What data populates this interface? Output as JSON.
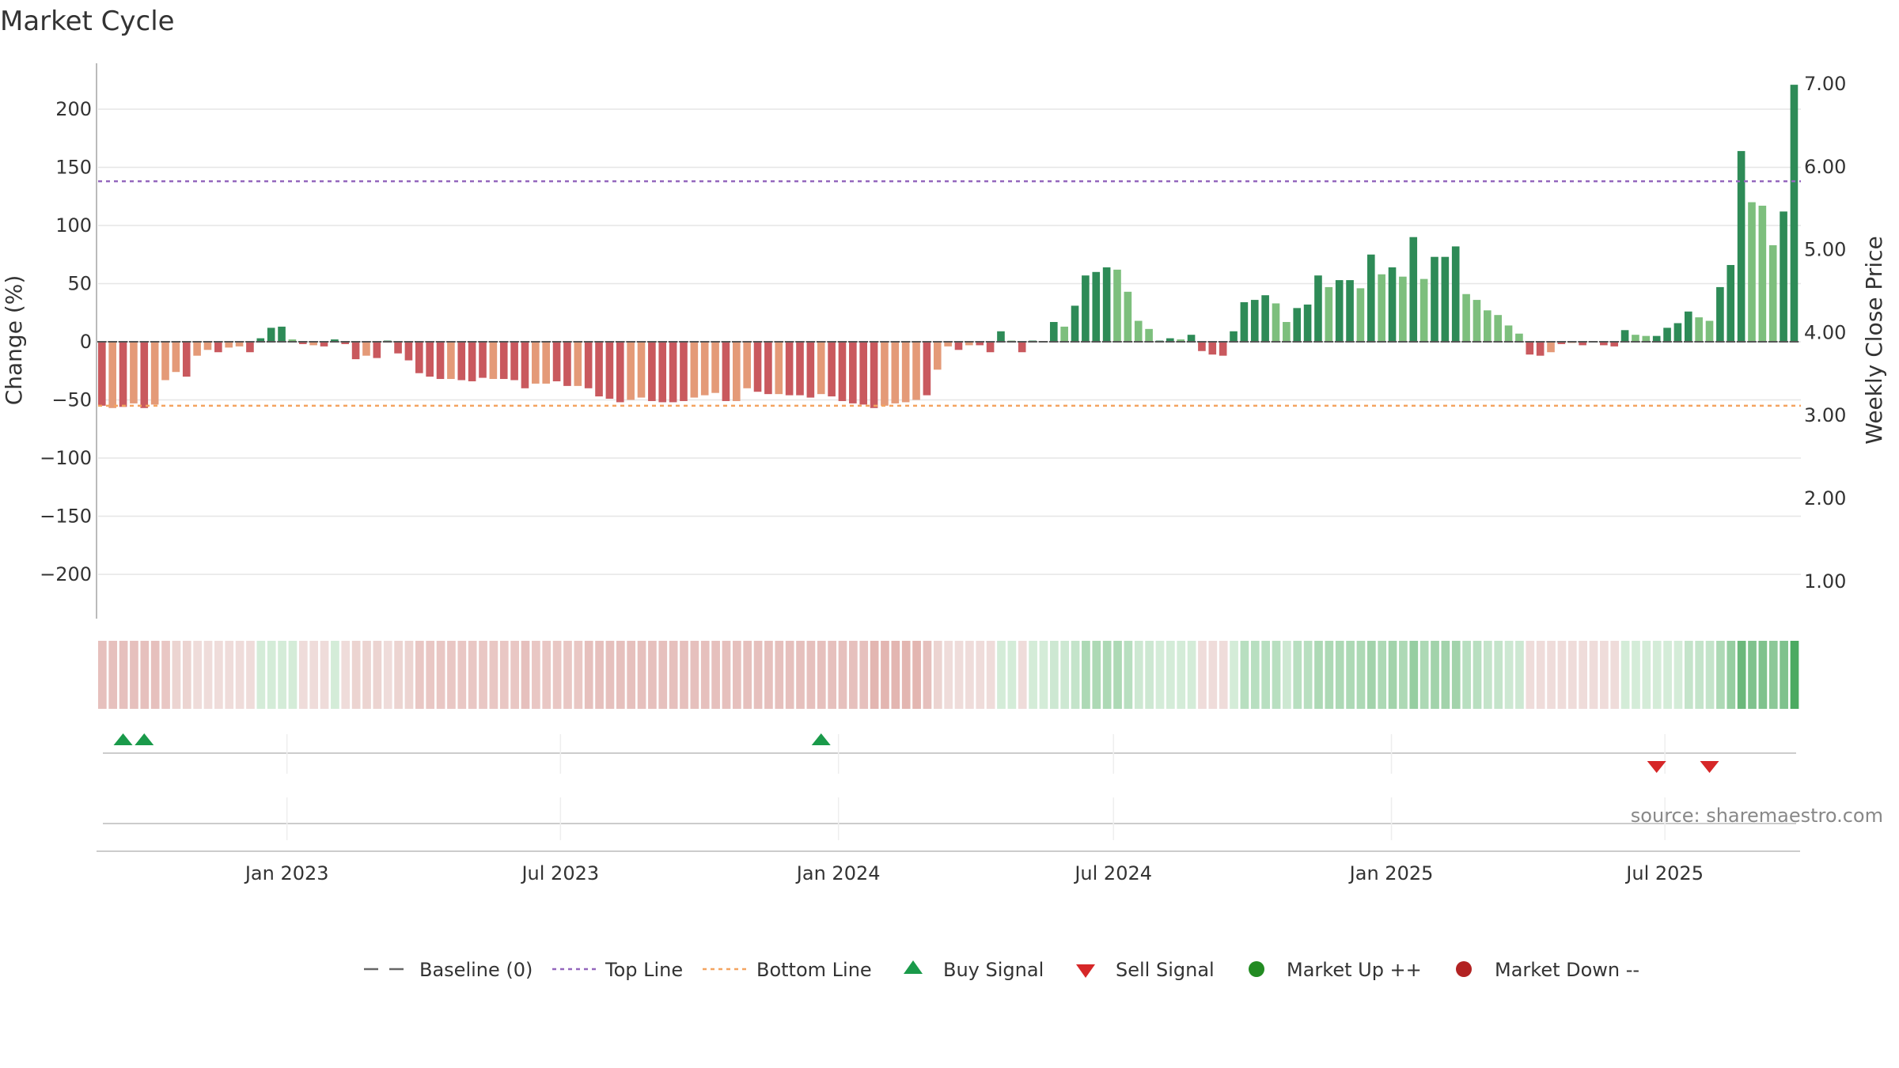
{
  "chart_data": {
    "type": "bar",
    "title": "Market Cycle",
    "ylabel": "Change (%)",
    "y2label": "Weekly Close Price",
    "ylim": [
      -240,
      240
    ],
    "y2lim": [
      0.3,
      7.3
    ],
    "yticks": [
      200,
      150,
      100,
      50,
      0,
      -50,
      -100,
      -150,
      -200
    ],
    "y2ticks": [
      "7.00",
      "6.00",
      "5.00",
      "4.00",
      "3.00",
      "2.00",
      "1.00"
    ],
    "y2tick_values": [
      7,
      6,
      5,
      4,
      3,
      2,
      1
    ],
    "x_start": "2022-08-29",
    "x_end": "2025-09-29",
    "xticks": [
      {
        "label": "Jan 2023",
        "date": "2023-01-01"
      },
      {
        "label": "Jul 2023",
        "date": "2023-07-01"
      },
      {
        "label": "Jan 2024",
        "date": "2024-01-01"
      },
      {
        "label": "Jul 2024",
        "date": "2024-07-01"
      },
      {
        "label": "Jan 2025",
        "date": "2025-01-01"
      },
      {
        "label": "Jul 2025",
        "date": "2025-07-01"
      }
    ],
    "top_line": 138,
    "bottom_line": -55,
    "baseline": 0,
    "values": [
      -55,
      -57,
      -56,
      -53,
      -57,
      -54,
      -33,
      -26,
      -30,
      -12,
      -7,
      -9,
      -5,
      -4,
      -9,
      3,
      12,
      13,
      2,
      -2,
      -3,
      -4,
      2,
      -2,
      -15,
      -12,
      -14,
      1,
      -10,
      -16,
      -27,
      -30,
      -32,
      -32,
      -33,
      -34,
      -31,
      -32,
      -32,
      -33,
      -40,
      -36,
      -36,
      -34,
      -38,
      -38,
      -40,
      -47,
      -49,
      -52,
      -50,
      -48,
      -51,
      -52,
      -52,
      -51,
      -48,
      -46,
      -44,
      -51,
      -51,
      -40,
      -43,
      -45,
      -45,
      -46,
      -46,
      -48,
      -45,
      -47,
      -51,
      -53,
      -54,
      -57,
      -55,
      -53,
      -52,
      -50,
      -46,
      -24,
      -4,
      -7,
      -3,
      -3,
      -9,
      9,
      1,
      -9,
      1,
      0,
      17,
      13,
      31,
      57,
      60,
      64,
      62,
      43,
      18,
      11,
      1,
      3,
      2,
      6,
      -8,
      -11,
      -12,
      9,
      34,
      36,
      40,
      33,
      17,
      29,
      32,
      57,
      47,
      53,
      53,
      46,
      75,
      58,
      64,
      56,
      90,
      54,
      73,
      73,
      82,
      41,
      36,
      27,
      23,
      14,
      7,
      -11,
      -12,
      -9,
      -2,
      -1,
      -3,
      0,
      -3,
      -4,
      10,
      6,
      5,
      5,
      12,
      16,
      26,
      21,
      18,
      47,
      66,
      164,
      120,
      117,
      83,
      112,
      221
    ],
    "bar_colors": [
      "#c9595e",
      "#e49a78",
      "#c9595e",
      "#e49a78",
      "#c9595e",
      "#e49a78",
      "#e49a78",
      "#e49a78",
      "#c9595e",
      "#e49a78",
      "#e49a78",
      "#c9595e",
      "#e49a78",
      "#e49a78",
      "#c9595e",
      "#2e8b57",
      "#2e8b57",
      "#2e8b57",
      "#7dbf7d",
      "#c9595e",
      "#e49a78",
      "#c9595e",
      "#2e8b57",
      "#c9595e",
      "#c9595e",
      "#e49a78",
      "#c9595e",
      "#2e8b57",
      "#c9595e",
      "#c9595e",
      "#c9595e",
      "#c9595e",
      "#c9595e",
      "#e49a78",
      "#c9595e",
      "#c9595e",
      "#c9595e",
      "#e49a78",
      "#c9595e",
      "#c9595e",
      "#c9595e",
      "#e49a78",
      "#e49a78",
      "#c9595e",
      "#c9595e",
      "#e49a78",
      "#c9595e",
      "#c9595e",
      "#c9595e",
      "#c9595e",
      "#e49a78",
      "#e49a78",
      "#c9595e",
      "#c9595e",
      "#c9595e",
      "#c9595e",
      "#e49a78",
      "#e49a78",
      "#e49a78",
      "#c9595e",
      "#e49a78",
      "#e49a78",
      "#c9595e",
      "#c9595e",
      "#e49a78",
      "#c9595e",
      "#c9595e",
      "#c9595e",
      "#e49a78",
      "#c9595e",
      "#c9595e",
      "#c9595e",
      "#c9595e",
      "#c9595e",
      "#e49a78",
      "#e49a78",
      "#e49a78",
      "#e49a78",
      "#c9595e",
      "#e49a78",
      "#e49a78",
      "#c9595e",
      "#e49a78",
      "#c9595e",
      "#c9595e",
      "#2e8b57",
      "#7dbf7d",
      "#c9595e",
      "#2e8b57",
      "#2e8b57",
      "#2e8b57",
      "#7dbf7d",
      "#2e8b57",
      "#2e8b57",
      "#2e8b57",
      "#2e8b57",
      "#7dbf7d",
      "#7dbf7d",
      "#7dbf7d",
      "#7dbf7d",
      "#2e8b57",
      "#2e8b57",
      "#7dbf7d",
      "#2e8b57",
      "#c9595e",
      "#c9595e",
      "#c9595e",
      "#2e8b57",
      "#2e8b57",
      "#2e8b57",
      "#2e8b57",
      "#7dbf7d",
      "#7dbf7d",
      "#2e8b57",
      "#2e8b57",
      "#2e8b57",
      "#7dbf7d",
      "#2e8b57",
      "#2e8b57",
      "#7dbf7d",
      "#2e8b57",
      "#7dbf7d",
      "#2e8b57",
      "#7dbf7d",
      "#2e8b57",
      "#7dbf7d",
      "#2e8b57",
      "#2e8b57",
      "#2e8b57",
      "#7dbf7d",
      "#7dbf7d",
      "#7dbf7d",
      "#7dbf7d",
      "#7dbf7d",
      "#7dbf7d",
      "#c9595e",
      "#c9595e",
      "#e49a78",
      "#c9595e",
      "#e49a78",
      "#c9595e",
      "#2e8b57",
      "#c9595e",
      "#c9595e",
      "#2e8b57",
      "#7dbf7d",
      "#7dbf7d",
      "#2e8b57",
      "#2e8b57",
      "#2e8b57",
      "#2e8b57",
      "#7dbf7d",
      "#7dbf7d",
      "#2e8b57",
      "#2e8b57",
      "#2e8b57",
      "#7dbf7d",
      "#7dbf7d",
      "#7dbf7d",
      "#2e8b57",
      "#2e8b57"
    ],
    "strip_colors": [
      "#e6c0bd",
      "#e6c0bd",
      "#e6c0bd",
      "#e6c0bd",
      "#e6c0bd",
      "#e6c0bd",
      "#e9c7c4",
      "#ecd4d1",
      "#ecd4d1",
      "#efdcda",
      "#efdcda",
      "#efdcda",
      "#efdcda",
      "#efdcda",
      "#efdcda",
      "#d4ecd8",
      "#d4ecd8",
      "#d4ecd8",
      "#d4ecd8",
      "#efdcda",
      "#efdcda",
      "#efdcda",
      "#d4ecd8",
      "#efdcda",
      "#ecd4d1",
      "#ecd4d1",
      "#ecd4d1",
      "#efdcda",
      "#ecd4d1",
      "#ecd4d1",
      "#e9c7c4",
      "#e9c7c4",
      "#e9c7c4",
      "#e9c7c4",
      "#e9c7c4",
      "#e9c7c4",
      "#e9c7c4",
      "#e9c7c4",
      "#e9c7c4",
      "#e9c7c4",
      "#e6c0bd",
      "#e9c7c4",
      "#e9c7c4",
      "#e9c7c4",
      "#e9c7c4",
      "#e9c7c4",
      "#e6c0bd",
      "#e6c0bd",
      "#e6c0bd",
      "#e6c0bd",
      "#e6c0bd",
      "#e6c0bd",
      "#e6c0bd",
      "#e6c0bd",
      "#e6c0bd",
      "#e6c0bd",
      "#e6c0bd",
      "#e6c0bd",
      "#e6c0bd",
      "#e6c0bd",
      "#e6c0bd",
      "#e6c0bd",
      "#e6c0bd",
      "#e6c0bd",
      "#e6c0bd",
      "#e6c0bd",
      "#e6c0bd",
      "#e6c0bd",
      "#e6c0bd",
      "#e6c0bd",
      "#e6c0bd",
      "#e6c0bd",
      "#e6c0bd",
      "#e3b6b1",
      "#e3b6b1",
      "#e3b6b1",
      "#e3b6b1",
      "#e3b6b1",
      "#e6c0bd",
      "#ecd4d1",
      "#efdcda",
      "#efdcda",
      "#efdcda",
      "#efdcda",
      "#efdcda",
      "#d4ecd8",
      "#d4ecd8",
      "#efdcda",
      "#d4ecd8",
      "#d4ecd8",
      "#cde8d2",
      "#cde8d2",
      "#c4e4ca",
      "#add9b5",
      "#add9b5",
      "#add9b5",
      "#add9b5",
      "#b8dfc0",
      "#cde8d2",
      "#cde8d2",
      "#d4ecd8",
      "#d4ecd8",
      "#d4ecd8",
      "#d4ecd8",
      "#efdcda",
      "#efdcda",
      "#efdcda",
      "#d4ecd8",
      "#b8dfc0",
      "#b8dfc0",
      "#b8dfc0",
      "#b8dfc0",
      "#cde8d2",
      "#b8dfc0",
      "#b8dfc0",
      "#add9b5",
      "#add9b5",
      "#add9b5",
      "#add9b5",
      "#add9b5",
      "#a2d3ab",
      "#add9b5",
      "#a2d3ab",
      "#add9b5",
      "#96cea1",
      "#add9b5",
      "#a2d3ab",
      "#a2d3ab",
      "#a2d3ab",
      "#b8dfc0",
      "#b8dfc0",
      "#c4e4ca",
      "#c4e4ca",
      "#cde8d2",
      "#cde8d2",
      "#efdcda",
      "#efdcda",
      "#efdcda",
      "#efdcda",
      "#efdcda",
      "#efdcda",
      "#efdcda",
      "#efdcda",
      "#efdcda",
      "#d4ecd8",
      "#d4ecd8",
      "#d4ecd8",
      "#d4ecd8",
      "#d4ecd8",
      "#d4ecd8",
      "#c4e4ca",
      "#c4e4ca",
      "#c4e4ca",
      "#add9b5",
      "#96cea1",
      "#6bb87b",
      "#7fc28d",
      "#7fc28d",
      "#8cc898",
      "#7fc28d",
      "#4caa62"
    ],
    "buy_signals": [
      2,
      4,
      68
    ],
    "sell_signals": [
      147,
      152
    ],
    "source": "source: sharemaestro.com",
    "legend": [
      {
        "label": "Baseline (0)",
        "marker": "dash",
        "color": "#666666"
      },
      {
        "label": "Top Line",
        "marker": "dotted",
        "color": "#9467bd"
      },
      {
        "label": "Bottom Line",
        "marker": "dotted",
        "color": "#f4a460"
      },
      {
        "label": "Buy Signal",
        "marker": "triangle-up",
        "color": "#1a9a4a"
      },
      {
        "label": "Sell Signal",
        "marker": "triangle-down",
        "color": "#d62728"
      },
      {
        "label": "Market Up ++",
        "marker": "circle",
        "color": "#228b22"
      },
      {
        "label": "Market Down --",
        "marker": "circle",
        "color": "#b22222"
      }
    ],
    "colors": {
      "top_line": "#9467bd",
      "bottom_line": "#f4a460",
      "baseline": "#666666",
      "grid": "#e6e6e6",
      "buy": "#1a9a4a",
      "sell": "#d62728"
    }
  }
}
